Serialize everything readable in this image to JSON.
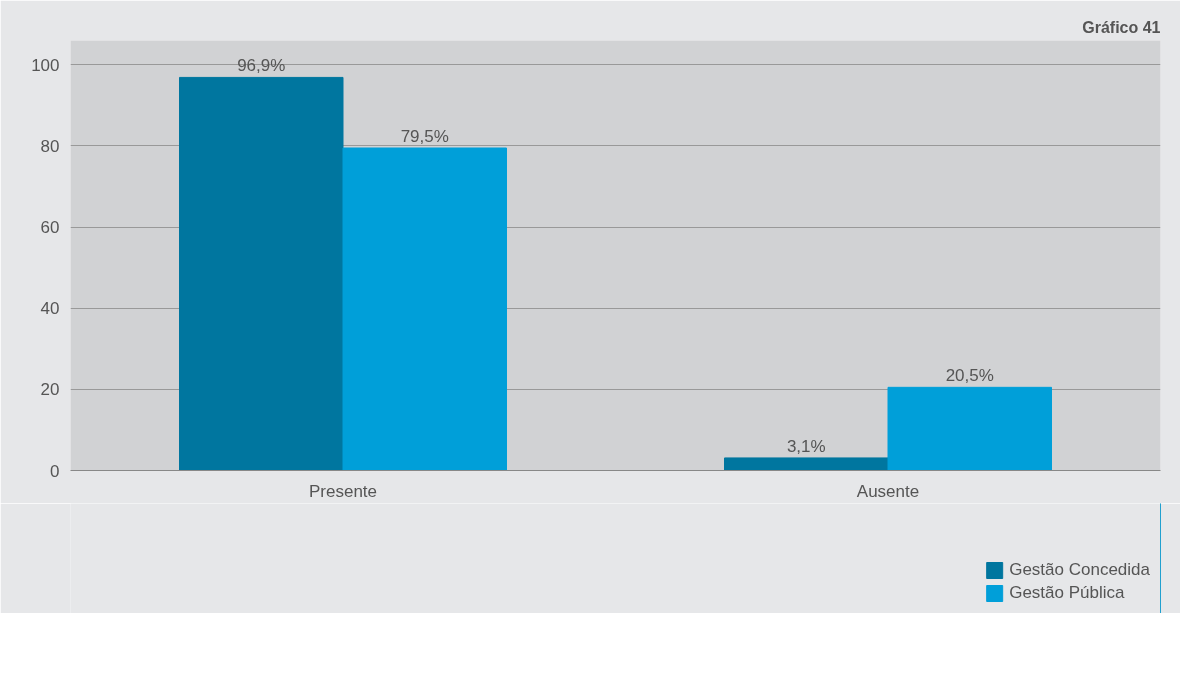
{
  "chart_data": {
    "type": "bar",
    "title": "Gráfico 41",
    "categories": [
      "Presente",
      "Ausente"
    ],
    "series": [
      {
        "name": "Gestão Concedida",
        "color": "#00769f",
        "values": [
          96.9,
          3.1
        ],
        "value_labels": [
          "96,9%",
          "3,1%"
        ]
      },
      {
        "name": "Gestão Pública",
        "color": "#009fd9",
        "values": [
          79.5,
          20.5
        ],
        "value_labels": [
          "79,5%",
          "20,5%"
        ]
      }
    ],
    "ylim": [
      0,
      106
    ],
    "yticks": [
      0,
      20,
      40,
      60,
      80,
      100
    ],
    "grid": "y",
    "legend": "bottom right"
  }
}
